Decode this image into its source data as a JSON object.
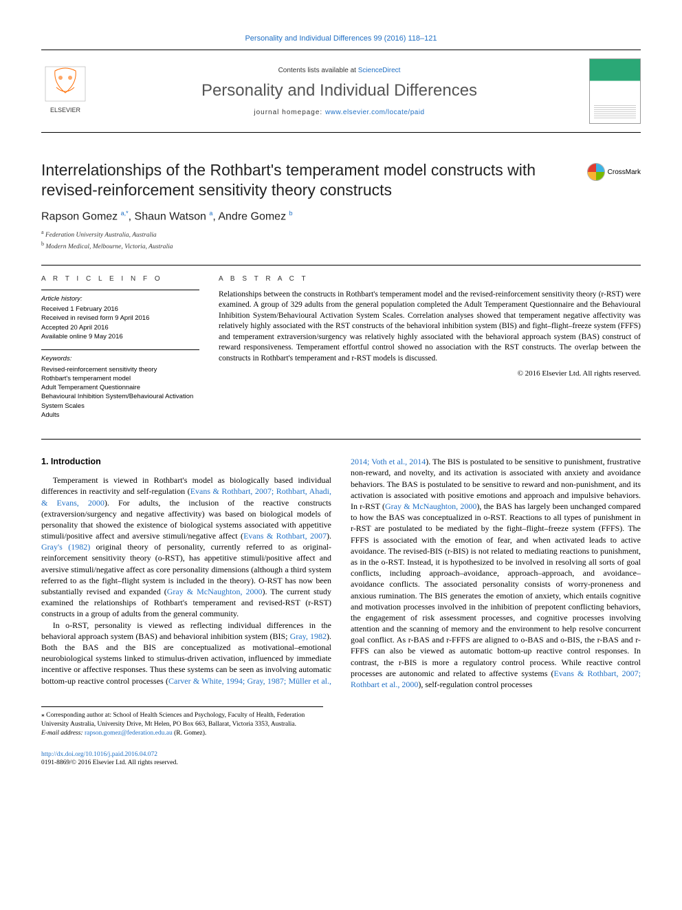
{
  "header": {
    "top_citation": "Personality and Individual Differences 99 (2016) 118–121",
    "contents_prefix": "Contents lists available at ",
    "contents_link": "ScienceDirect",
    "journal_name": "Personality and Individual Differences",
    "homepage_prefix": "journal homepage: ",
    "homepage_url": "www.elsevier.com/locate/paid"
  },
  "crossmark_label": "CrossMark",
  "crossmark_colors": [
    "#e03c31",
    "#3cb4e5",
    "#f9b233",
    "#7ab800"
  ],
  "title": "Interrelationships of the Rothbart's temperament model constructs with revised-reinforcement sensitivity theory constructs",
  "authors_html": "Rapson Gomez <sup>a,*</sup>, Shaun Watson <sup>a</sup>, Andre Gomez <sup>b</sup>",
  "affiliations": [
    {
      "sup": "a",
      "text": "Federation University Australia, Australia"
    },
    {
      "sup": "b",
      "text": "Modern Medical, Melbourne, Victoria, Australia"
    }
  ],
  "article_info": {
    "header": "A R T I C L E   I N F O",
    "history_header": "Article history:",
    "history": [
      "Received 1 February 2016",
      "Received in revised form 9 April 2016",
      "Accepted 20 April 2016",
      "Available online 9 May 2016"
    ],
    "keywords_header": "Keywords:",
    "keywords": [
      "Revised-reinforcement sensitivity theory",
      "Rothbart's temperament model",
      "Adult Temperament Questionnaire",
      "Behavioural Inhibition System/Behavioural Activation System Scales",
      "Adults"
    ]
  },
  "abstract": {
    "header": "A B S T R A C T",
    "text": "Relationships between the constructs in Rothbart's temperament model and the revised-reinforcement sensitivity theory (r-RST) were examined. A group of 329 adults from the general population completed the Adult Temperament Questionnaire and the Behavioural Inhibition System/Behavioural Activation System Scales. Correlation analyses showed that temperament negative affectivity was relatively highly associated with the RST constructs of the behavioral inhibition system (BIS) and fight–flight–freeze system (FFFS) and temperament extraversion/surgency was relatively highly associated with the behavioral approach system (BAS) construct of reward responsiveness. Temperament effortful control showed no association with the RST constructs. The overlap between the constructs in Rothbart's temperament and r-RST models is discussed.",
    "copyright": "© 2016 Elsevier Ltd. All rights reserved."
  },
  "section_heading": "1. Introduction",
  "body": {
    "p1a": "Temperament is viewed in Rothbart's model as biologically based individual differences in reactivity and self-regulation (",
    "p1_link1": "Evans & Rothbart, 2007; Rothbart, Ahadi, & Evans, 2000",
    "p1b": "). For adults, the inclusion of the reactive constructs (extraversion/surgency and negative affectivity) was based on biological models of personality that showed the existence of biological systems associated with appetitive stimuli/positive affect and aversive stimuli/negative affect (",
    "p1_link2": "Evans & Rothbart, 2007",
    "p1c": "). ",
    "p1_link3": "Gray's (1982)",
    "p1d": " original theory of personality, currently referred to as original-reinforcement sensitivity theory (o-RST), has appetitive stimuli/positive affect and aversive stimuli/negative affect as core personality dimensions (although a third system referred to as the fight–flight system is included in the theory). O-RST has now been substantially revised and expanded (",
    "p1_link4": "Gray & McNaughton, 2000",
    "p1e": "). The current study examined the relationships of Rothbart's temperament and revised-RST (r-RST) constructs in a group of adults from the general community.",
    "p2a": "In o-RST, personality is viewed as reflecting individual differences in the behavioral approach system (BAS) and behavioral inhibition system (BIS; ",
    "p2_link1": "Gray, 1982",
    "p2b": "). Both the BAS and the BIS are conceptualized as motivational–emotional neurobiological systems linked to stimulus-driven activation, influenced by immediate incentive or affective ",
    "p3a": "responses. Thus these systems can be seen as involving automatic bottom-up reactive control processes (",
    "p3_link1": "Carver & White, 1994; Gray, 1987; Müller et al., 2014; Voth et al., 2014",
    "p3b": "). The BIS is postulated to be sensitive to punishment, frustrative non-reward, and novelty, and its activation is associated with anxiety and avoidance behaviors. The BAS is postulated to be sensitive to reward and non-punishment, and its activation is associated with positive emotions and approach and impulsive behaviors. In r-RST (",
    "p3_link2": "Gray & McNaughton, 2000",
    "p3c": "), the BAS has largely been unchanged compared to how the BAS was conceptualized in o-RST. Reactions to all types of punishment in r-RST are postulated to be mediated by the fight–flight–freeze system (FFFS). The FFFS is associated with the emotion of fear, and when activated leads to active avoidance. The revised-BIS (r-BIS) is not related to mediating reactions to punishment, as in the o-RST. Instead, it is hypothesized to be involved in resolving all sorts of goal conflicts, including approach–avoidance, approach–approach, and avoidance–avoidance conflicts. The associated personality consists of worry-proneness and anxious rumination. The BIS generates the emotion of anxiety, which entails cognitive and motivation processes involved in the inhibition of prepotent conflicting behaviors, the engagement of risk assessment processes, and cognitive processes involving attention and the scanning of memory and the environment to help resolve concurrent goal conflict. As r-BAS and r-FFFS are aligned to o-BAS and o-BIS, the r-BAS and r-FFFS can also be viewed as automatic bottom-up reactive control responses. In contrast, the r-BIS is more a regulatory control process. While reactive control processes are autonomic and related to affective systems (",
    "p3_link3": "Evans & Rothbart, 2007; Rothbart et al., 2000",
    "p3d": "), self-regulation control processes"
  },
  "footnote": {
    "corr_label": "⁎ Corresponding author at: School of Health Sciences and Psychology, Faculty of Health, Federation University Australia, University Drive, Mt Helen, PO Box 663, Ballarat, Victoria 3353, Australia.",
    "email_label": "E-mail address: ",
    "email": "rapson.gomez@federation.edu.au",
    "email_suffix": " (R. Gomez)."
  },
  "doi": {
    "url": "http://dx.doi.org/10.1016/j.paid.2016.04.072",
    "issn_line": "0191-8869/© 2016 Elsevier Ltd. All rights reserved."
  },
  "colors": {
    "link": "#1f6fc4",
    "text": "#000000",
    "elsevier_orange": "#ff6c00"
  }
}
